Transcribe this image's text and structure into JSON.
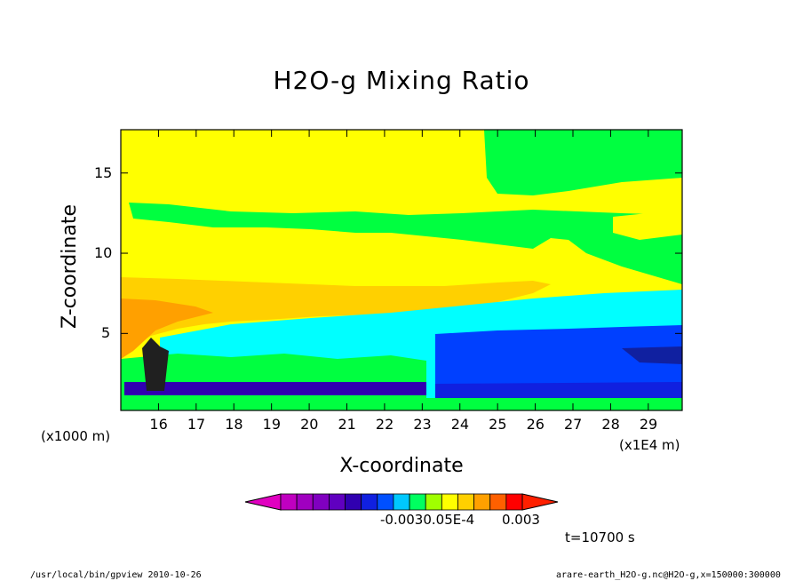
{
  "chart_data": {
    "type": "heatmap",
    "title": "H2O-g Mixing Ratio",
    "xlabel": "X-coordinate",
    "ylabel": "Z-coordinate",
    "x_unit_left": "(x1000 m)",
    "x_unit_right": "(x1E4 m)",
    "xlim": [
      15.0,
      29.9
    ],
    "ylim": [
      0.2,
      17.7
    ],
    "x_ticks": [
      "16",
      "17",
      "18",
      "19",
      "20",
      "21",
      "22",
      "23",
      "24",
      "25",
      "26",
      "27",
      "28",
      "29"
    ],
    "y_ticks": [
      "5",
      "10",
      "15"
    ],
    "colorbar_labels": [
      "-0.003",
      "0.003",
      "-0.0030.05E-4"
    ],
    "colorbar_colors": [
      "#c000c0",
      "#a000c0",
      "#8000c0",
      "#6000c0",
      "#3000b0",
      "#1020e0",
      "#0050ff",
      "#00c8ff",
      "#00ff60",
      "#a0ff00",
      "#ffff00",
      "#ffd000",
      "#ffa000",
      "#ff6000",
      "#ff0000"
    ],
    "time_label": "t=10700 s",
    "footer_left": "/usr/local/bin/gpview  2010-10-26",
    "footer_right": "arare-earth_H2O-g.nc@H2O-g,x=150000:300000"
  }
}
